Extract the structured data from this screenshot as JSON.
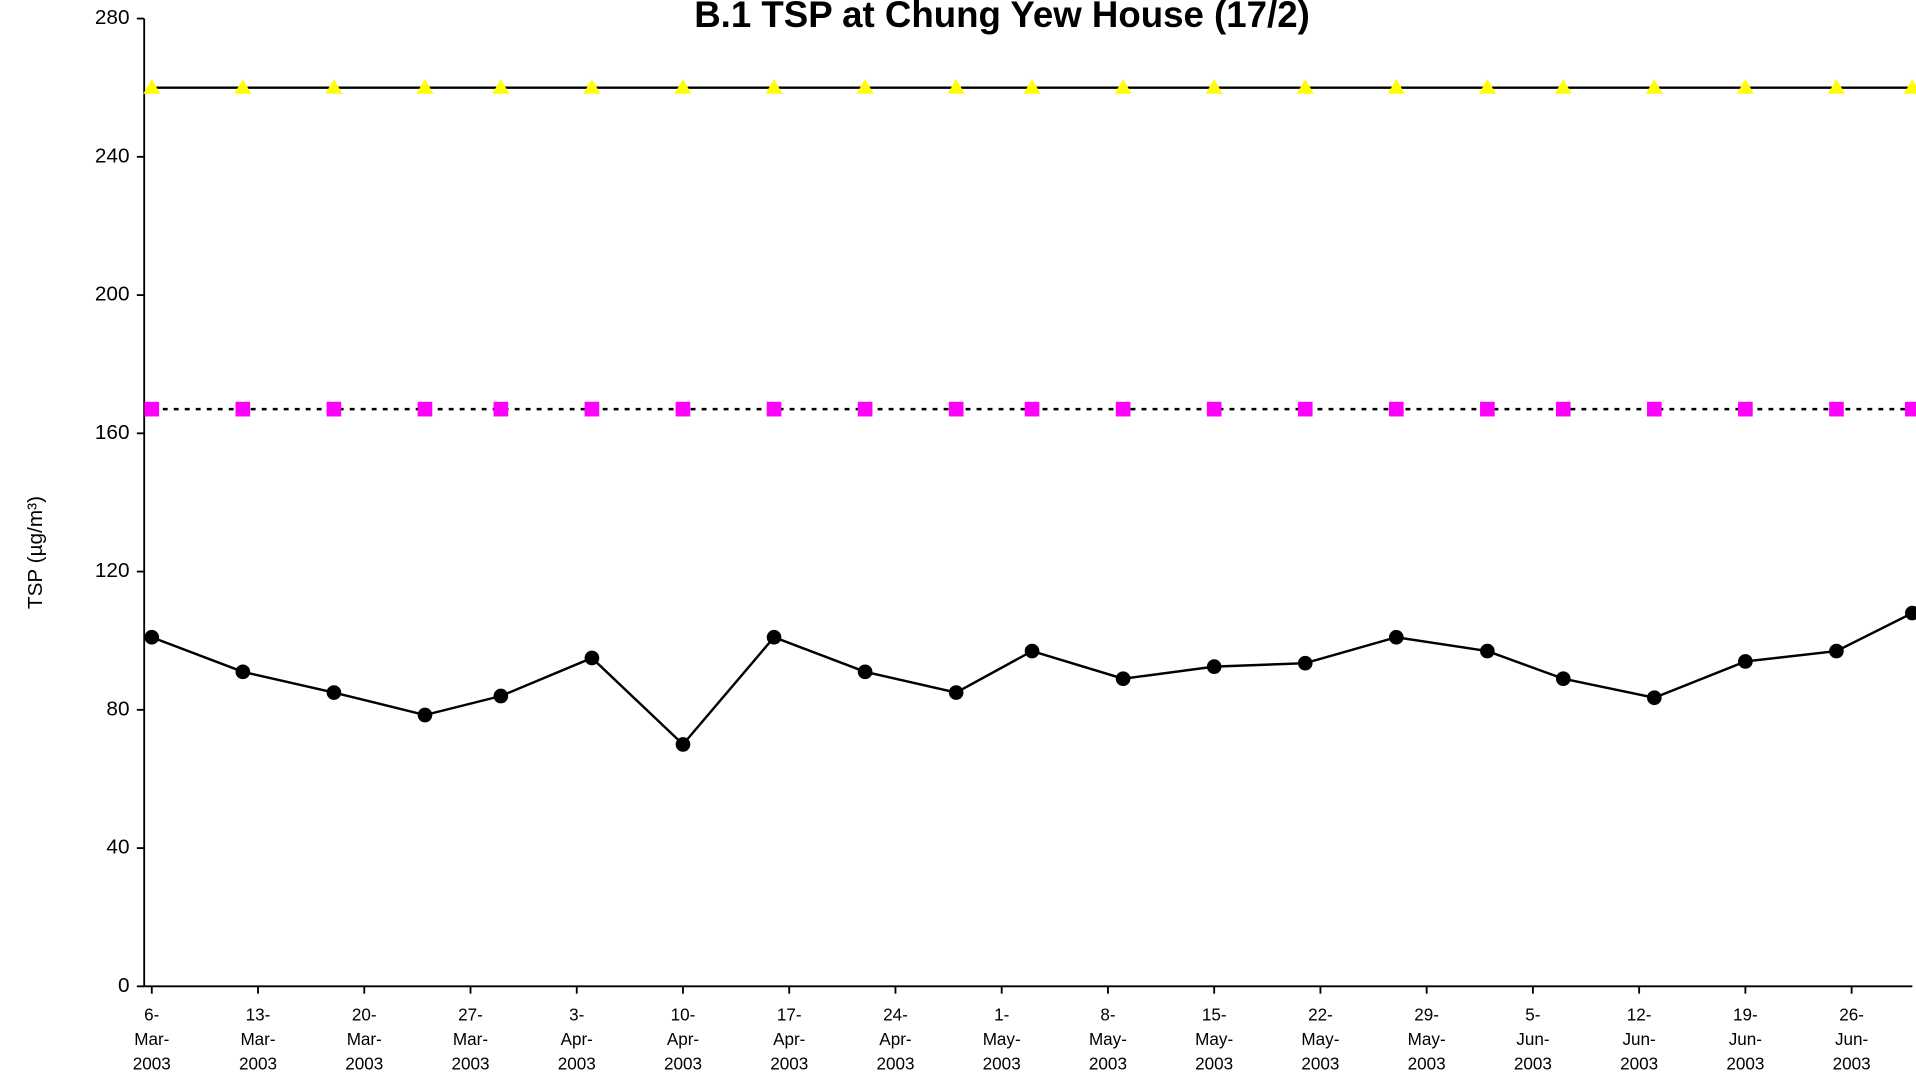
{
  "chart_data": {
    "type": "line",
    "title": "B.1 TSP at Chung Yew House (17/2)",
    "ylabel": "TSP (µg/m³)",
    "x": [
      "2003-03-06",
      "2003-03-12",
      "2003-03-18",
      "2003-03-24",
      "2003-03-29",
      "2003-04-04",
      "2003-04-10",
      "2003-04-16",
      "2003-04-22",
      "2003-04-28",
      "2003-05-03",
      "2003-05-09",
      "2003-05-15",
      "2003-05-21",
      "2003-05-27",
      "2003-06-02",
      "2003-06-07",
      "2003-06-13",
      "2003-06-19",
      "2003-06-25",
      "2003-06-30"
    ],
    "series": [
      {
        "color": "#000000",
        "line_color": "#000000",
        "marker": "circle",
        "dashed": false,
        "values": [
          101,
          91,
          85,
          78.5,
          84,
          95,
          70,
          101,
          91,
          85,
          97,
          89,
          92.5,
          93.5,
          101,
          97,
          89,
          83.5,
          94,
          97,
          108
        ]
      },
      {
        "color": "#ffff00",
        "line_color": "#000000",
        "marker": "triangle",
        "dashed": false,
        "values": [
          260,
          260,
          260,
          260,
          260,
          260,
          260,
          260,
          260,
          260,
          260,
          260,
          260,
          260,
          260,
          260,
          260,
          260,
          260,
          260,
          260
        ]
      },
      {
        "color": "#ff00ff",
        "line_color": "#000000",
        "marker": "square",
        "dashed": true,
        "values": [
          167,
          167,
          167,
          167,
          167,
          167,
          167,
          167,
          167,
          167,
          167,
          167,
          167,
          167,
          167,
          167,
          167,
          167,
          167,
          167,
          167
        ]
      }
    ],
    "xlim": [
      "2003-03-05T12:00",
      "2003-06-30T00:00"
    ],
    "xticks": [
      {
        "value": "2003-03-06",
        "label": "6-Mar-2003"
      },
      {
        "value": "2003-03-13",
        "label": "13-Mar-2003"
      },
      {
        "value": "2003-03-20",
        "label": "20-Mar-2003"
      },
      {
        "value": "2003-03-27",
        "label": "27-Mar-2003"
      },
      {
        "value": "2003-04-03",
        "label": "3-Apr-2003"
      },
      {
        "value": "2003-04-10",
        "label": "10-Apr-2003"
      },
      {
        "value": "2003-04-17",
        "label": "17-Apr-2003"
      },
      {
        "value": "2003-04-24",
        "label": "24-Apr-2003"
      },
      {
        "value": "2003-05-01",
        "label": "1-May-2003"
      },
      {
        "value": "2003-05-08",
        "label": "8-May-2003"
      },
      {
        "value": "2003-05-15",
        "label": "15-May-2003"
      },
      {
        "value": "2003-05-22",
        "label": "22-May-2003"
      },
      {
        "value": "2003-05-29",
        "label": "29-May-2003"
      },
      {
        "value": "2003-06-05",
        "label": "5-Jun-2003"
      },
      {
        "value": "2003-06-12",
        "label": "12-Jun-2003"
      },
      {
        "value": "2003-06-19",
        "label": "19-Jun-2003"
      },
      {
        "value": "2003-06-26",
        "label": "26-Jun-2003"
      }
    ],
    "ylim": [
      0,
      280
    ],
    "yticks": [
      0,
      40,
      80,
      120,
      160,
      200,
      240,
      280
    ],
    "grid": false
  }
}
